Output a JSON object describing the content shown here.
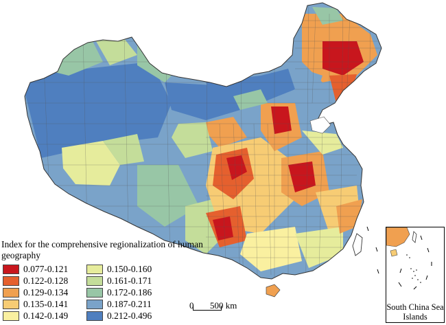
{
  "legend": {
    "title": "Index for the comprehensive regionalization of human geography",
    "classes": [
      {
        "label": "0.077-0.121",
        "color": "#c8161d"
      },
      {
        "label": "0.150-0.160",
        "color": "#e6ec9c"
      },
      {
        "label": "0.122-0.128",
        "color": "#e5602e"
      },
      {
        "label": "0.161-0.171",
        "color": "#c4dd9a"
      },
      {
        "label": "0.129-0.134",
        "color": "#f0a050"
      },
      {
        "label": "0.172-0.186",
        "color": "#98c6a6"
      },
      {
        "label": "0.135-0.141",
        "color": "#f7cc74"
      },
      {
        "label": "0.187-0.211",
        "color": "#7aa3c9"
      },
      {
        "label": "0.142-0.149",
        "color": "#faf0a0"
      },
      {
        "label": "0.212-0.496",
        "color": "#4f7fbf"
      }
    ]
  },
  "scale": {
    "zero": "0",
    "distance": "500 km"
  },
  "inset": {
    "label": "South China Sea Islands"
  },
  "colors": {
    "boundary": "#555555",
    "sea": "#ffffff"
  }
}
